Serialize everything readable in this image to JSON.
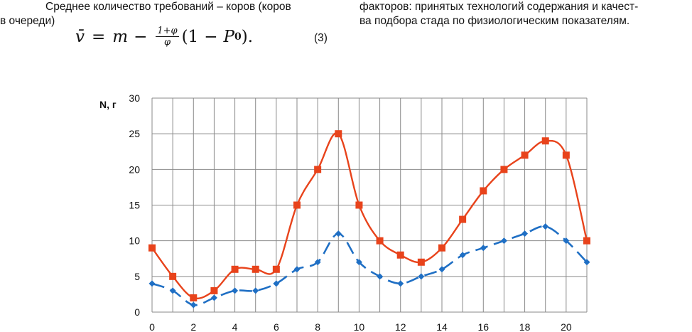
{
  "text": {
    "left_line1": "Среднее количество требований – коров (коров",
    "left_line2": "в очереди)",
    "right_line1": "факторов: принятых технологий содержания и качест-",
    "right_line2": "ва подбора стада по физиологическим показателям."
  },
  "formula": {
    "lhs": "v̄",
    "equals": "=",
    "m": "m",
    "minus": "−",
    "frac_num": "1+φ",
    "frac_den": "φ",
    "paren_open": "(1",
    "minus2": "−",
    "P": "P",
    "sub": "0",
    "paren_close": ").",
    "number": "(3)"
  },
  "chart_data": {
    "type": "line",
    "ylabel": "N, г",
    "xlabel": "",
    "xlim": [
      0,
      21
    ],
    "ylim": [
      0,
      30
    ],
    "x_ticks": [
      "0",
      "2",
      "4",
      "6",
      "8",
      "10",
      "12",
      "14",
      "16",
      "18",
      "20"
    ],
    "y_ticks": [
      "0",
      "5",
      "10",
      "15",
      "20",
      "25",
      "30"
    ],
    "grid": true,
    "x": [
      0,
      1,
      2,
      3,
      4,
      5,
      6,
      7,
      8,
      9,
      10,
      11,
      12,
      13,
      14,
      15,
      16,
      17,
      18,
      19,
      20,
      21
    ],
    "series": [
      {
        "color": "#e8431b",
        "style": "solid",
        "marker": "square",
        "values": [
          9,
          5,
          2,
          3,
          6,
          6,
          6,
          15,
          20,
          25,
          15,
          10,
          8,
          7,
          9,
          13,
          17,
          20,
          22,
          24,
          22,
          10
        ]
      },
      {
        "color": "#1f6fc4",
        "style": "dashed",
        "marker": "diamond",
        "values": [
          4,
          3,
          1,
          2,
          3,
          3,
          4,
          6,
          7,
          11,
          7,
          5,
          4,
          5,
          6,
          8,
          9,
          10,
          11,
          12,
          10,
          7
        ]
      }
    ]
  }
}
